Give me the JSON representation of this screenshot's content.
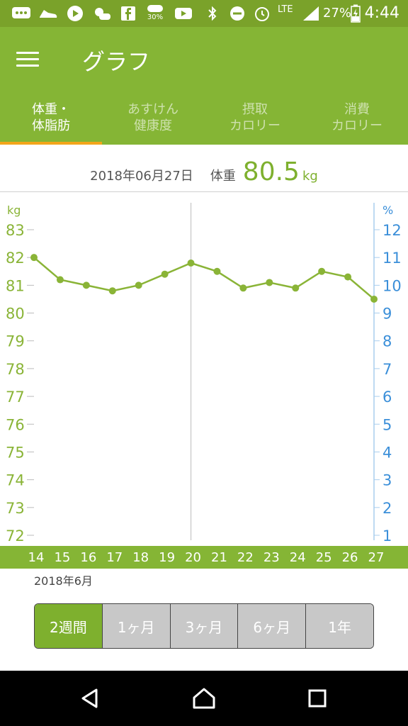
{
  "status_bar": {
    "lte_label": "LTE",
    "weather_percent": "30%",
    "battery_percent": "27%",
    "time": "4:44"
  },
  "app_bar": {
    "title": "グラフ"
  },
  "tabs": [
    {
      "line1": "体重・",
      "line2": "体脂肪",
      "active": true
    },
    {
      "line1": "あすけん",
      "line2": "健康度",
      "active": false
    },
    {
      "line1": "摂取",
      "line2": "カロリー",
      "active": false
    },
    {
      "line1": "消費",
      "line2": "カロリー",
      "active": false
    }
  ],
  "info": {
    "date": "2018年06月27日",
    "label": "体重",
    "value": "80.5",
    "unit": "kg"
  },
  "chart_data": {
    "type": "line",
    "left_axis_unit": "kg",
    "right_axis_unit": "%",
    "y_left_ticks": [
      "83",
      "82",
      "81",
      "80",
      "79",
      "78",
      "77",
      "76",
      "75",
      "74",
      "73",
      "72"
    ],
    "y_right_ticks": [
      "12",
      "11",
      "10",
      "9",
      "8",
      "7",
      "6",
      "5",
      "4",
      "3",
      "2",
      "1"
    ],
    "ylim_left": [
      72,
      83
    ],
    "ylim_right": [
      1,
      12
    ],
    "x": [
      "14",
      "15",
      "16",
      "17",
      "18",
      "19",
      "20",
      "21",
      "22",
      "23",
      "24",
      "25",
      "26",
      "27"
    ],
    "series": [
      {
        "values": [
          82.0,
          81.2,
          81.0,
          80.8,
          81.0,
          81.4,
          81.8,
          81.5,
          80.9,
          81.1,
          80.9,
          81.5,
          81.3,
          80.5
        ]
      }
    ],
    "highlight_x": "20",
    "month_label": "2018年6月",
    "line_color": "#8ab437",
    "left_axis_color": "#8ab437",
    "right_axis_color": "#3b8fd9"
  },
  "range_selector": {
    "options": [
      "2週間",
      "1ヶ月",
      "3ヶ月",
      "6ヶ月",
      "1年"
    ],
    "selected": "2週間"
  }
}
